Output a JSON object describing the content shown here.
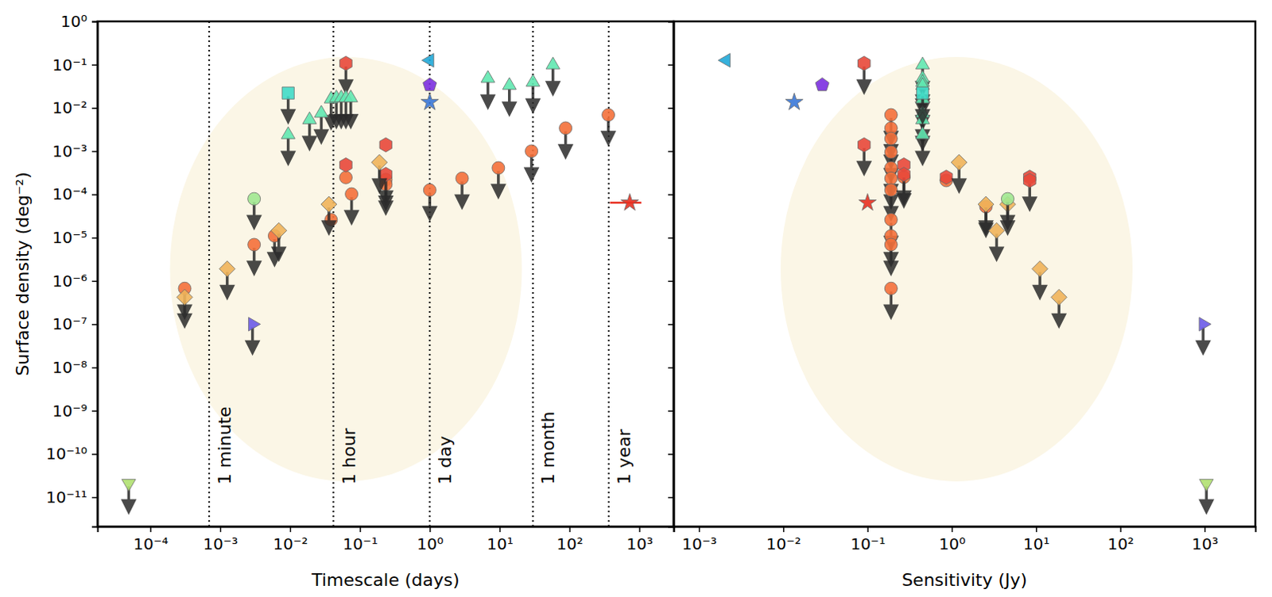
{
  "chart_data": [
    {
      "type": "scatter",
      "log": true,
      "tick_labels": true,
      "xlabel": "Timescale (days)",
      "ylabel": "Surface density (deg⁻²)",
      "xlim": [
        1.75e-05,
        3100
      ],
      "ylim": [
        2.1e-12,
        1
      ],
      "xticks": [
        {
          "value": 0.0001,
          "label": "10⁻⁴"
        },
        {
          "value": 0.001,
          "label": "10⁻³"
        },
        {
          "value": 0.01,
          "label": "10⁻²"
        },
        {
          "value": 0.1,
          "label": "10⁻¹"
        },
        {
          "value": 1,
          "label": "10⁰"
        },
        {
          "value": 10,
          "label": "10¹"
        },
        {
          "value": 100,
          "label": "10²"
        },
        {
          "value": 1000,
          "label": "10³"
        }
      ],
      "yticks": [
        {
          "value": 1,
          "label": "10⁰"
        },
        {
          "value": 0.1,
          "label": "10⁻¹"
        },
        {
          "value": 0.01,
          "label": "10⁻²"
        },
        {
          "value": 0.001,
          "label": "10⁻³"
        },
        {
          "value": 0.0001,
          "label": "10⁻⁴"
        },
        {
          "value": 1e-05,
          "label": "10⁻⁵"
        },
        {
          "value": 1e-06,
          "label": "10⁻⁶"
        },
        {
          "value": 1e-07,
          "label": "10⁻⁷"
        },
        {
          "value": 1e-08,
          "label": "10⁻⁸"
        },
        {
          "value": 1e-09,
          "label": "10⁻⁹"
        },
        {
          "value": 1e-10,
          "label": "10⁻¹⁰"
        },
        {
          "value": 1e-11,
          "label": "10⁻¹¹"
        }
      ],
      "vlines": [
        {
          "value": 0.000694,
          "label": "1 minute"
        },
        {
          "value": 0.0417,
          "label": "1 hour"
        },
        {
          "value": 1,
          "label": "1 day"
        },
        {
          "value": 30,
          "label": "1 month"
        },
        {
          "value": 365,
          "label": "1 year"
        }
      ],
      "series": [
        {
          "marker": "circle",
          "color": "#f4703a",
          "x": [
            0.00031,
            0.00306,
            0.006,
            0.0387,
            0.063,
            0.076,
            0.235,
            0.235,
            1,
            2.9,
            9.6,
            28.6,
            88,
            360
          ],
          "values": [
            6.7e-07,
            6.9e-06,
            1.1e-05,
            2.6e-05,
            0.000246,
            0.000102,
            0.00022,
            0.00017,
            0.000126,
            0.000235,
            0.00041,
            0.001,
            0.0034,
            0.0069
          ],
          "upper_limit": [
            true,
            true,
            true,
            false,
            false,
            true,
            true,
            true,
            true,
            true,
            true,
            true,
            true,
            true
          ]
        },
        {
          "marker": "hexagon",
          "color": "#e8483a",
          "x": [
            0.063,
            0.063,
            0.235,
            0.235
          ],
          "values": [
            0.107,
            0.00048,
            0.0014,
            0.00029
          ],
          "upper_limit": [
            true,
            false,
            false,
            true
          ]
        },
        {
          "marker": "diamond",
          "color": "#f0b45a",
          "x": [
            0.00031,
            0.00126,
            0.0069,
            0.036,
            0.19
          ],
          "values": [
            4.2e-07,
            1.9e-06,
            1.46e-05,
            5.9e-05,
            0.00055
          ],
          "upper_limit": [
            true,
            true,
            true,
            true,
            true
          ]
        },
        {
          "marker": "circle",
          "color": "#a0e890",
          "x": [
            0.00306
          ],
          "values": [
            7.9e-05
          ],
          "upper_limit": [
            true
          ]
        },
        {
          "marker": "triangle-up",
          "color": "#60e8b0",
          "x": [
            0.0094,
            0.019,
            0.028,
            0.0387,
            0.046,
            0.054,
            0.063,
            0.074,
            6.8,
            13.8,
            30,
            58
          ],
          "values": [
            0.0024,
            0.0053,
            0.0075,
            0.016,
            0.017,
            0.017,
            0.017,
            0.017,
            0.048,
            0.033,
            0.039,
            0.098
          ],
          "upper_limit": [
            true,
            true,
            true,
            true,
            true,
            true,
            true,
            true,
            true,
            true,
            true,
            true
          ]
        },
        {
          "marker": "square",
          "color": "#40dcc8",
          "x": [
            0.0094
          ],
          "values": [
            0.022
          ],
          "upper_limit": [
            true
          ]
        },
        {
          "marker": "triangle-left",
          "color": "#20a8d8",
          "x": [
            1
          ],
          "values": [
            0.126
          ],
          "upper_limit": [
            false
          ]
        },
        {
          "marker": "pentagon",
          "color": "#7b2fe0",
          "x": [
            1
          ],
          "values": [
            0.034
          ],
          "upper_limit": [
            false
          ]
        },
        {
          "marker": "star",
          "color": "#3a78d8",
          "x": [
            1
          ],
          "values": [
            0.0135
          ],
          "upper_limit": [
            false
          ]
        },
        {
          "marker": "star",
          "color": "#e83020",
          "x": [
            730
          ],
          "values": [
            6.4e-05
          ],
          "upper_limit": [
            false
          ],
          "xerr_low": [
            380
          ],
          "xerr_high": [
            1070
          ]
        },
        {
          "marker": "triangle-right",
          "color": "#6a5ae8",
          "x": [
            0.0029
          ],
          "values": [
            1e-07
          ],
          "upper_limit": [
            true
          ]
        },
        {
          "marker": "triangle-down",
          "color": "#b0e070",
          "x": [
            4.9e-05
          ],
          "values": [
            2.1e-11
          ],
          "upper_limit": [
            true
          ]
        }
      ]
    },
    {
      "type": "scatter",
      "log": true,
      "tick_labels": "x",
      "xlabel": "Sensitivity (Jy)",
      "xlim": [
        0.0005,
        4000
      ],
      "ylim": [
        2.1e-12,
        1
      ],
      "xticks": [
        {
          "value": 0.001,
          "label": "10⁻³"
        },
        {
          "value": 0.01,
          "label": "10⁻²"
        },
        {
          "value": 0.1,
          "label": "10⁻¹"
        },
        {
          "value": 1,
          "label": "10⁰"
        },
        {
          "value": 10,
          "label": "10¹"
        },
        {
          "value": 100,
          "label": "10²"
        },
        {
          "value": 1000,
          "label": "10³"
        }
      ],
      "yticks": [
        1,
        0.1,
        0.01,
        0.001,
        0.0001,
        1e-05,
        1e-06,
        1e-07,
        1e-08,
        1e-09,
        1e-10,
        1e-11
      ],
      "series": [
        {
          "marker": "circle",
          "color": "#f4703a",
          "x": [
            0.19,
            0.19,
            0.19,
            0.19,
            0.19,
            0.19,
            0.19,
            0.19,
            0.19,
            0.19,
            0.19,
            0.27,
            0.86,
            2.54
          ],
          "values": [
            0.0069,
            0.0034,
            0.00195,
            0.00095,
            0.00041,
            0.000235,
            0.000126,
            2.6e-05,
            1.1e-05,
            6.9e-06,
            6.7e-07,
            0.00025,
            0.00021,
            5.2e-05
          ],
          "upper_limit": [
            true,
            true,
            true,
            true,
            true,
            true,
            true,
            true,
            true,
            true,
            true,
            true,
            false,
            true
          ]
        },
        {
          "marker": "hexagon",
          "color": "#e8483a",
          "x": [
            0.091,
            0.091,
            0.27,
            0.27,
            0.86,
            8.4,
            8.4
          ],
          "values": [
            0.107,
            0.0014,
            0.00048,
            0.00029,
            0.00025,
            0.00025,
            0.00021
          ],
          "upper_limit": [
            true,
            true,
            false,
            true,
            false,
            false,
            true
          ]
        },
        {
          "marker": "diamond",
          "color": "#f0b45a",
          "x": [
            1.22,
            2.54,
            3.4,
            4.6,
            11.1,
            18.7
          ],
          "values": [
            0.00055,
            5.9e-05,
            1.46e-05,
            5.9e-05,
            1.9e-06,
            4.2e-07
          ],
          "upper_limit": [
            true,
            true,
            true,
            true,
            true,
            true
          ]
        },
        {
          "marker": "circle",
          "color": "#a0e890",
          "x": [
            4.6
          ],
          "values": [
            7.9e-05
          ],
          "upper_limit": [
            true
          ]
        },
        {
          "marker": "triangle-up",
          "color": "#60e8b0",
          "x": [
            0.45,
            0.45,
            0.45,
            0.45,
            0.45,
            0.45,
            0.45,
            0.45
          ],
          "values": [
            0.098,
            0.048,
            0.039,
            0.033,
            0.016,
            0.0075,
            0.0053,
            0.0024
          ],
          "upper_limit": [
            true,
            true,
            true,
            true,
            true,
            true,
            true,
            true
          ]
        },
        {
          "marker": "square",
          "color": "#40dcc8",
          "x": [
            0.45
          ],
          "values": [
            0.022
          ],
          "upper_limit": [
            true
          ]
        },
        {
          "marker": "triangle-left",
          "color": "#20a8d8",
          "x": [
            0.0021
          ],
          "values": [
            0.126
          ],
          "upper_limit": [
            false
          ]
        },
        {
          "marker": "pentagon",
          "color": "#7b2fe0",
          "x": [
            0.029
          ],
          "values": [
            0.034
          ],
          "upper_limit": [
            false
          ]
        },
        {
          "marker": "star",
          "color": "#3a78d8",
          "x": [
            0.0135
          ],
          "values": [
            0.0135
          ],
          "upper_limit": [
            false
          ]
        },
        {
          "marker": "star",
          "color": "#e83020",
          "x": [
            0.1
          ],
          "values": [
            6.4e-05
          ],
          "upper_limit": [
            false
          ]
        },
        {
          "marker": "triangle-right",
          "color": "#6a5ae8",
          "x": [
            960
          ],
          "values": [
            1e-07
          ],
          "upper_limit": [
            true
          ]
        },
        {
          "marker": "triangle-down",
          "color": "#b0e070",
          "x": [
            1050
          ],
          "values": [
            2.1e-11
          ],
          "upper_limit": [
            true
          ]
        }
      ]
    }
  ]
}
